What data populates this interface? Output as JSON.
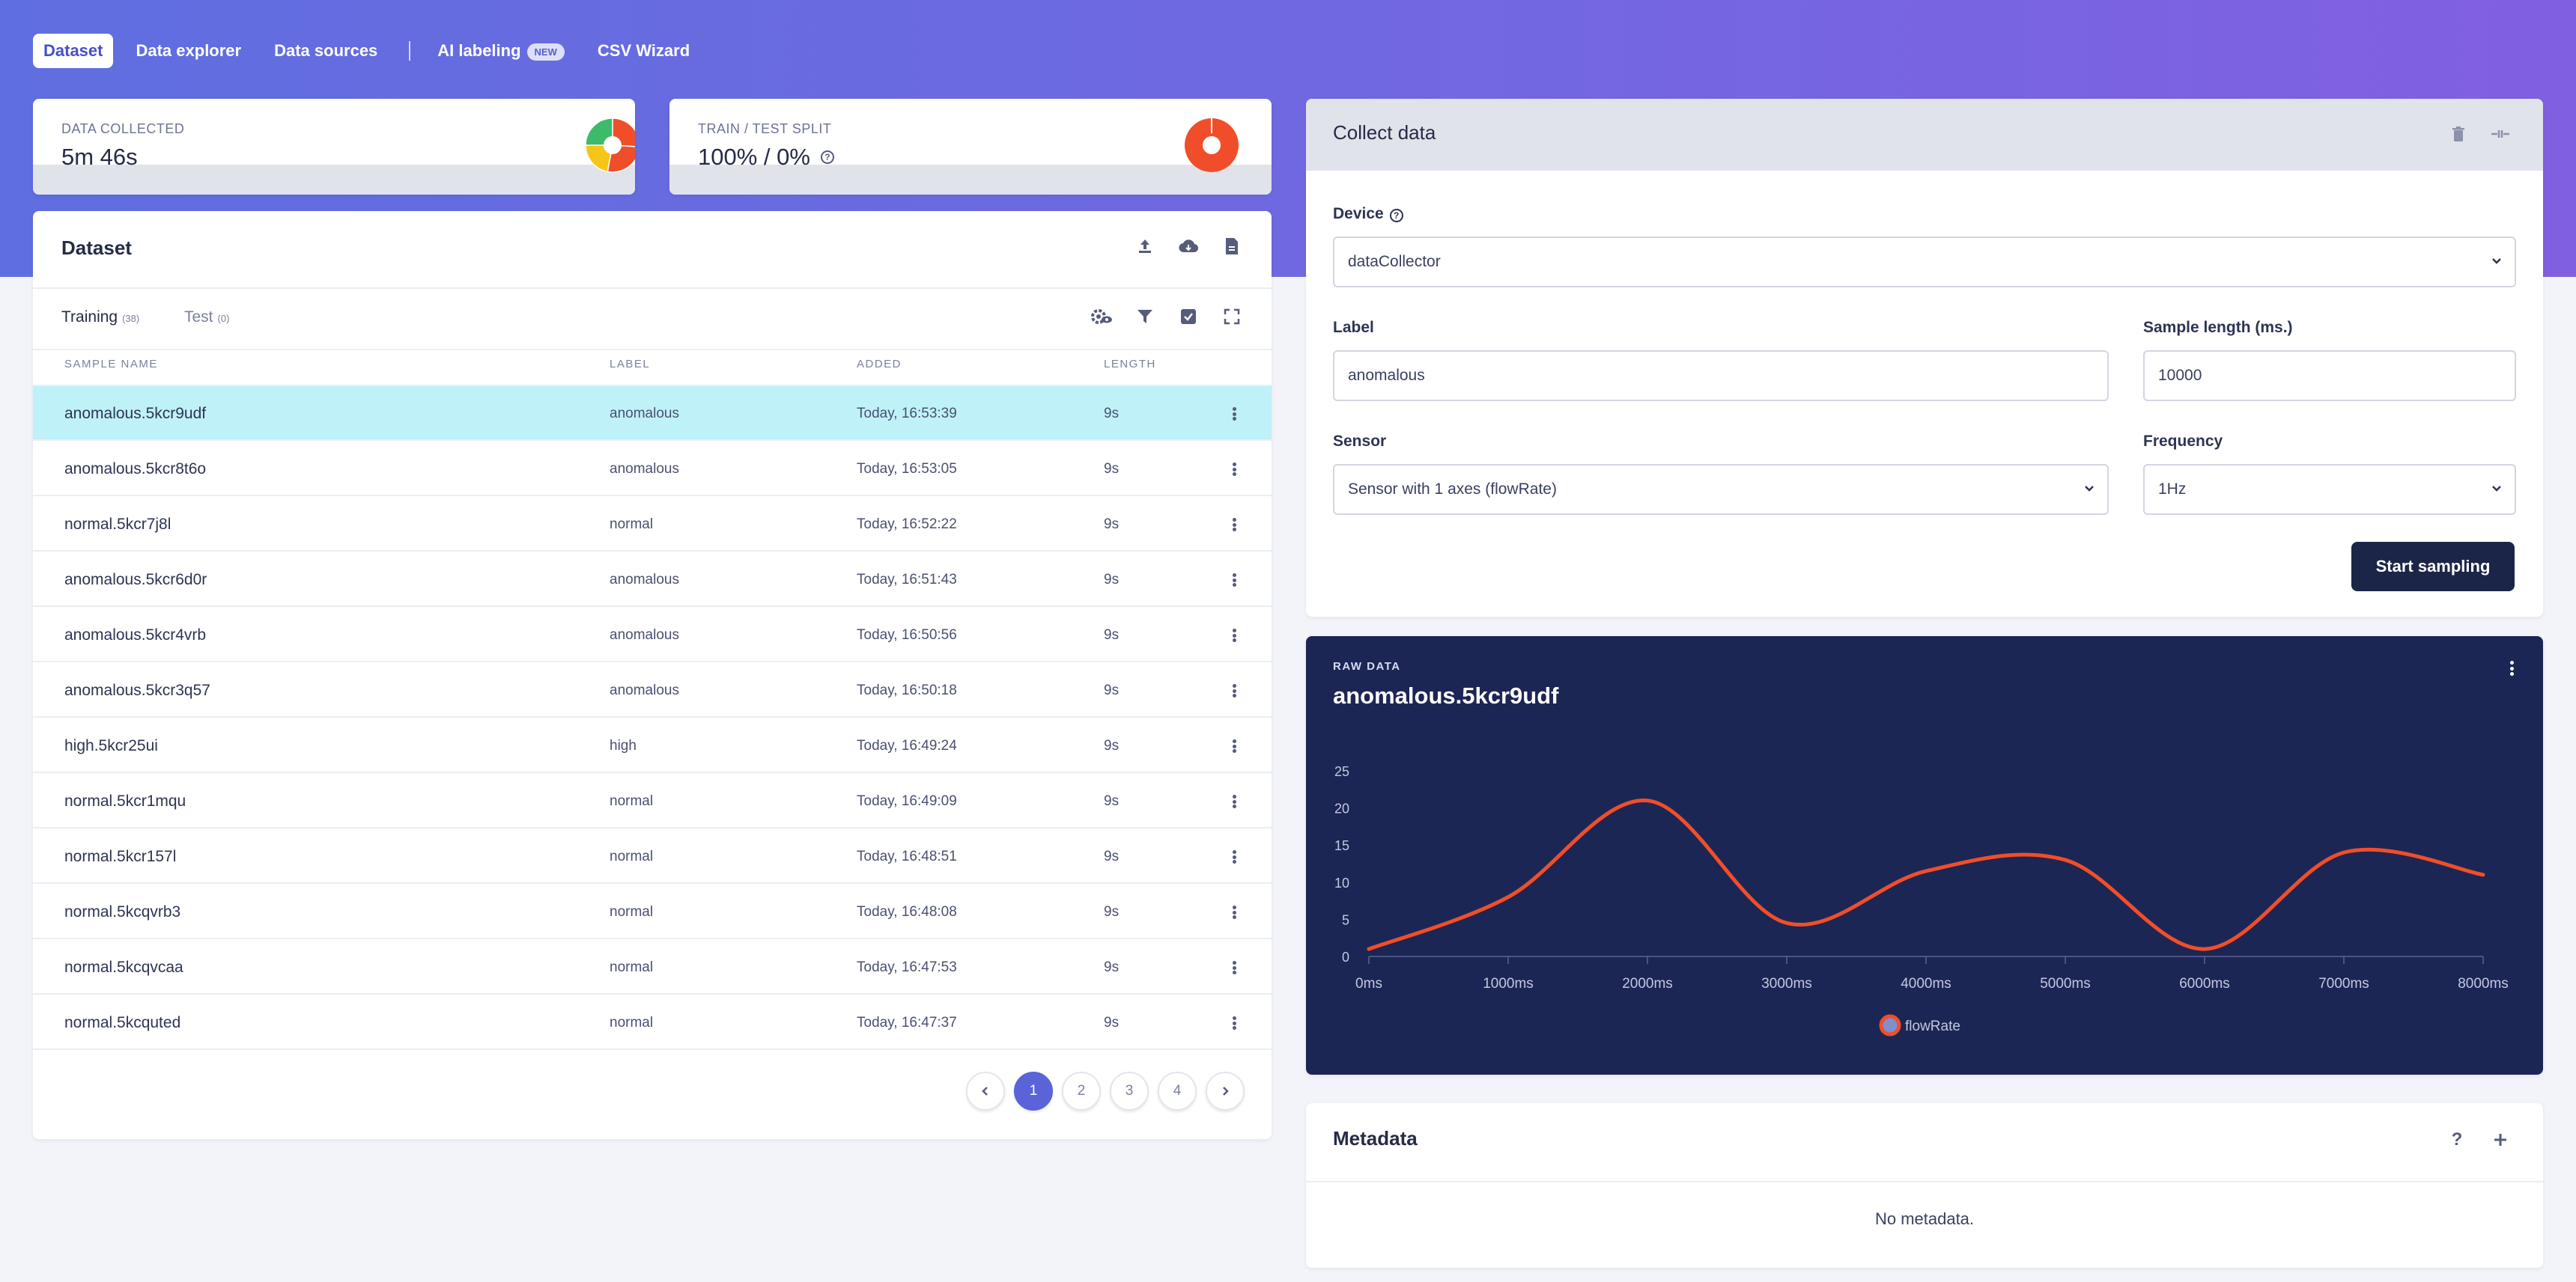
{
  "nav": {
    "tabs": [
      {
        "label": "Dataset"
      },
      {
        "label": "Data explorer"
      },
      {
        "label": "Data sources"
      },
      {
        "label": "AI labeling",
        "badge": "NEW"
      },
      {
        "label": "CSV Wizard"
      }
    ],
    "active_index": 0
  },
  "stats": {
    "data_collected": {
      "label": "DATA COLLECTED",
      "value": "5m 46s",
      "slices": [
        {
          "fraction": 0.26,
          "color": "#f04e2a"
        },
        {
          "fraction": 0.27,
          "color": "#f04e2a"
        },
        {
          "fraction": 0.22,
          "color": "#f5c518"
        },
        {
          "fraction": 0.25,
          "color": "#3dbb6a"
        }
      ]
    },
    "train_test_split": {
      "label": "TRAIN / TEST SPLIT",
      "value": "100% / 0%",
      "train_fraction": 1.0,
      "color": "#f04e2a"
    }
  },
  "dataset": {
    "title": "Dataset",
    "tabs": [
      {
        "label": "Training",
        "count": "(38)"
      },
      {
        "label": "Test",
        "count": "(0)"
      }
    ],
    "columns": [
      "SAMPLE NAME",
      "LABEL",
      "ADDED",
      "LENGTH"
    ],
    "rows": [
      {
        "name": "anomalous.5kcr9udf",
        "label": "anomalous",
        "added": "Today, 16:53:39",
        "length": "9s"
      },
      {
        "name": "anomalous.5kcr8t6o",
        "label": "anomalous",
        "added": "Today, 16:53:05",
        "length": "9s"
      },
      {
        "name": "normal.5kcr7j8l",
        "label": "normal",
        "added": "Today, 16:52:22",
        "length": "9s"
      },
      {
        "name": "anomalous.5kcr6d0r",
        "label": "anomalous",
        "added": "Today, 16:51:43",
        "length": "9s"
      },
      {
        "name": "anomalous.5kcr4vrb",
        "label": "anomalous",
        "added": "Today, 16:50:56",
        "length": "9s"
      },
      {
        "name": "anomalous.5kcr3q57",
        "label": "anomalous",
        "added": "Today, 16:50:18",
        "length": "9s"
      },
      {
        "name": "high.5kcr25ui",
        "label": "high",
        "added": "Today, 16:49:24",
        "length": "9s"
      },
      {
        "name": "normal.5kcr1mqu",
        "label": "normal",
        "added": "Today, 16:49:09",
        "length": "9s"
      },
      {
        "name": "normal.5kcr157l",
        "label": "normal",
        "added": "Today, 16:48:51",
        "length": "9s"
      },
      {
        "name": "normal.5kcqvrb3",
        "label": "normal",
        "added": "Today, 16:48:08",
        "length": "9s"
      },
      {
        "name": "normal.5kcqvcaa",
        "label": "normal",
        "added": "Today, 16:47:53",
        "length": "9s"
      },
      {
        "name": "normal.5kcquted",
        "label": "normal",
        "added": "Today, 16:47:37",
        "length": "9s"
      }
    ],
    "selected_row": 0,
    "pagination": {
      "pages": [
        "1",
        "2",
        "3",
        "4"
      ],
      "current": "1"
    }
  },
  "collect": {
    "title": "Collect data",
    "device_label": "Device",
    "device_value": "dataCollector",
    "label_label": "Label",
    "label_value": "anomalous",
    "sample_length_label": "Sample length (ms.)",
    "sample_length_value": "10000",
    "sensor_label": "Sensor",
    "sensor_value": "Sensor with 1 axes (flowRate)",
    "frequency_label": "Frequency",
    "frequency_value": "1Hz",
    "start_button": "Start sampling"
  },
  "raw": {
    "section_label": "RAW DATA",
    "sample_name": "anomalous.5kcr9udf"
  },
  "chart_data": {
    "type": "line",
    "title": "anomalous.5kcr9udf",
    "x": [
      0,
      1000,
      2000,
      3000,
      4000,
      5000,
      6000,
      7000,
      8000
    ],
    "x_tick_labels": [
      "0ms",
      "1000ms",
      "2000ms",
      "3000ms",
      "4000ms",
      "5000ms",
      "6000ms",
      "7000ms",
      "8000ms"
    ],
    "ylim": [
      0,
      25
    ],
    "y_ticks": [
      0,
      5,
      10,
      15,
      20,
      25
    ],
    "series": [
      {
        "name": "flowRate",
        "color": "#f04e2a",
        "values": [
          1,
          8,
          21,
          4.5,
          11.5,
          13,
          1,
          14,
          11
        ]
      }
    ],
    "legend": "bottom-center"
  },
  "metadata": {
    "title": "Metadata",
    "empty_text": "No metadata."
  }
}
